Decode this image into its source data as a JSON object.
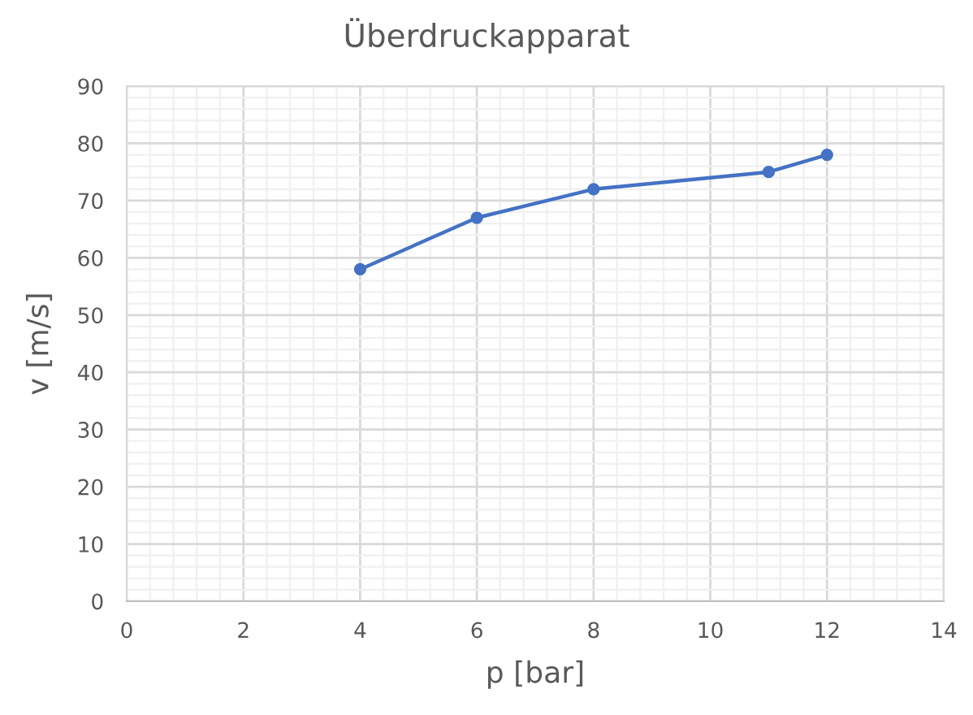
{
  "chart_data": {
    "type": "line",
    "title": "Überdruckapparat",
    "xlabel": "p [bar]",
    "ylabel": "v [m/s]",
    "x": [
      4,
      6,
      8,
      11,
      12
    ],
    "series": [
      {
        "color": "#4472c4",
        "values": [
          58,
          67,
          72,
          75,
          78
        ]
      }
    ],
    "xlim": [
      0,
      14
    ],
    "xticks": [
      0,
      2,
      4,
      6,
      8,
      10,
      12,
      14
    ],
    "ylim": [
      0,
      90
    ],
    "yticks": [
      0,
      10,
      20,
      30,
      40,
      50,
      60,
      70,
      80,
      90
    ],
    "grid": true,
    "marker": "circle",
    "line_style": "solid"
  }
}
